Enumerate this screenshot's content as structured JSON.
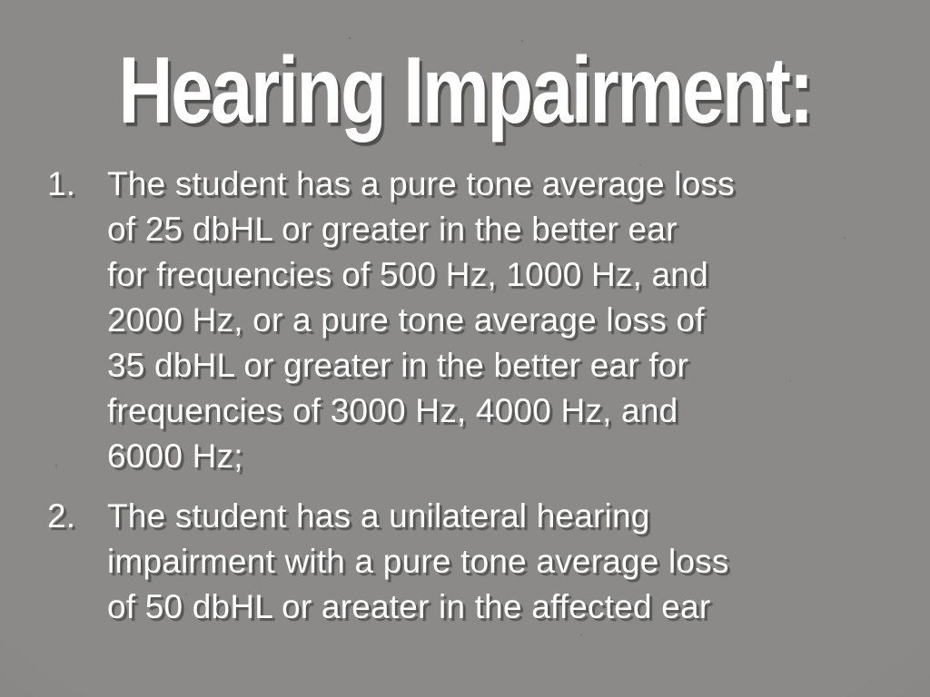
{
  "slide": {
    "title": "Hearing Impairment:",
    "background_color": "#8b8a88",
    "text_color": "#ffffff",
    "shadow_color": "#2a2a2a"
  },
  "list": {
    "items": [
      {
        "number": "1.",
        "text": "The student has a pure tone average loss\nof 25 dbHL or greater in the better ear\nfor frequencies of 500 Hz, 1000 Hz, and\n2000 Hz, or a pure tone average loss of\n35 dbHL or greater in the better ear for\nfrequencies of 3000 Hz, 4000 Hz, and\n6000 Hz;"
      },
      {
        "number": "2.",
        "text": "The student has a unilateral hearing\nimpairment with a pure tone average loss\nof 50 dbHL or areater in the affected ear"
      }
    ]
  }
}
